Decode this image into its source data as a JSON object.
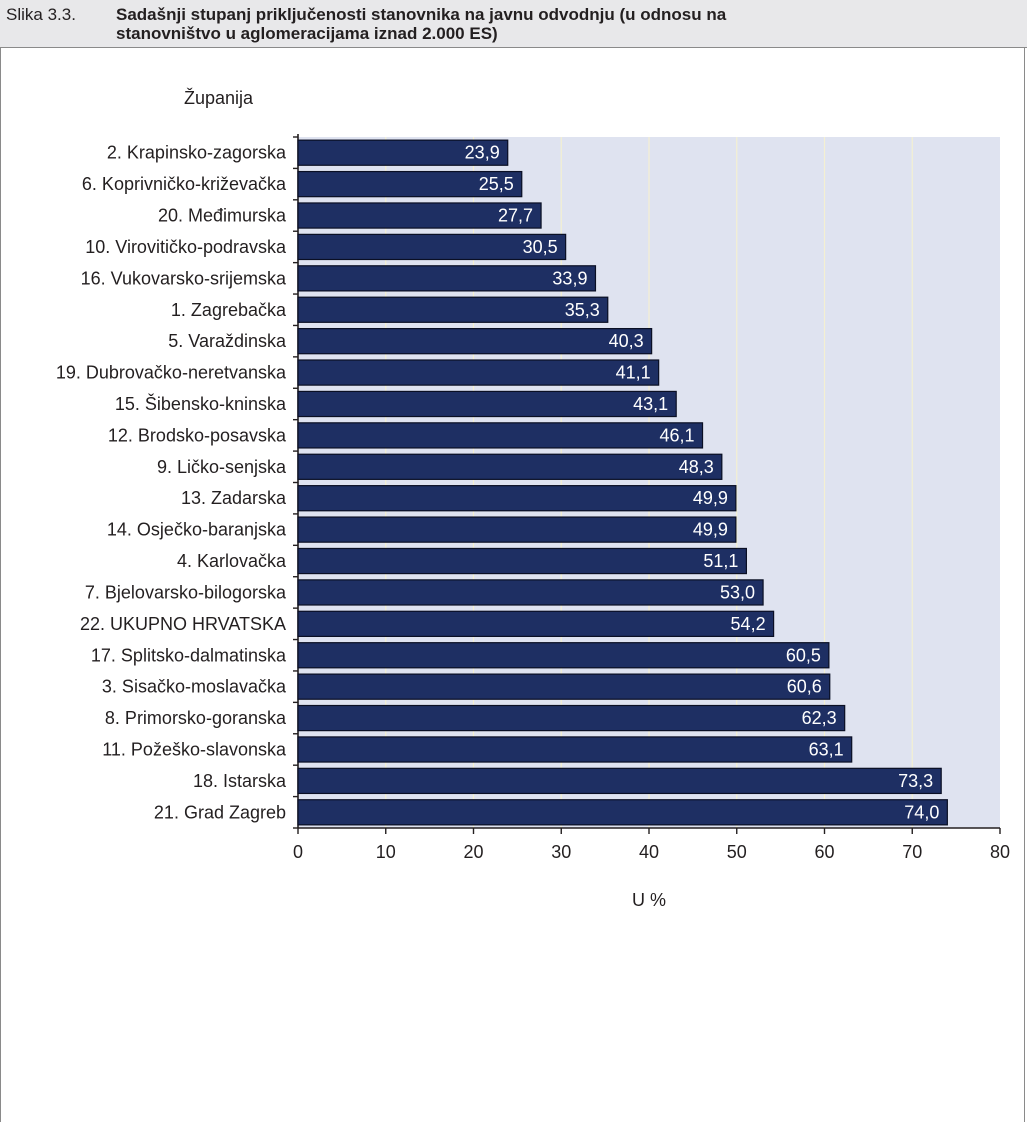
{
  "figure": {
    "prefix": "Slika 3.3.",
    "title_line1": "Sadašnji stupanj priključenosti stanovnika na javnu odvodnju (u odnosu na",
    "title_line2": "stanovništvo u aglomeracijama iznad 2.000 ES)"
  },
  "chart_data": {
    "type": "bar",
    "orientation": "horizontal",
    "category_header": "Županija",
    "xlabel": "U %",
    "xlim": [
      0,
      80
    ],
    "xticks": [
      0,
      10,
      20,
      30,
      40,
      50,
      60,
      70,
      80
    ],
    "grid": true,
    "categories": [
      "2. Krapinsko-zagorska",
      "6. Koprivničko-križevačka",
      "20. Međimurska",
      "10. Virovitičko-podravska",
      "16. Vukovarsko-srijemska",
      "1. Zagrebačka",
      "5. Varaždinska",
      "19. Dubrovačko-neretvanska",
      "15. Šibensko-kninska",
      "12. Brodsko-posavska",
      "9. Ličko-senjska",
      "13. Zadarska",
      "14. Osječko-baranjska",
      "4. Karlovačka",
      "7. Bjelovarsko-bilogorska",
      "22. UKUPNO HRVATSKA",
      "17. Splitsko-dalmatinska",
      "3. Sisačko-moslavačka",
      "8. Primorsko-goranska",
      "11. Požeško-slavonska",
      "18. Istarska",
      "21. Grad  Zagreb"
    ],
    "values": [
      23.9,
      25.5,
      27.7,
      30.5,
      33.9,
      35.3,
      40.3,
      41.1,
      43.1,
      46.1,
      48.3,
      49.9,
      49.9,
      51.1,
      53.0,
      54.2,
      60.5,
      60.6,
      62.3,
      63.1,
      73.3,
      74.0
    ],
    "value_labels": [
      "23,9",
      "25,5",
      "27,7",
      "30,5",
      "33,9",
      "35,3",
      "40,3",
      "41,1",
      "43,1",
      "46,1",
      "48,3",
      "49,9",
      "49,9",
      "51,1",
      "53,0",
      "54,2",
      "60,5",
      "60,6",
      "62,3",
      "63,1",
      "73,3",
      "74,0"
    ],
    "colors": {
      "bar": "#1e2f63",
      "bar_edge": "#0a0f24",
      "plot_background": "#dfe3f0",
      "gridline": "#f4f0d2",
      "bar_label": "#ffffff"
    }
  }
}
